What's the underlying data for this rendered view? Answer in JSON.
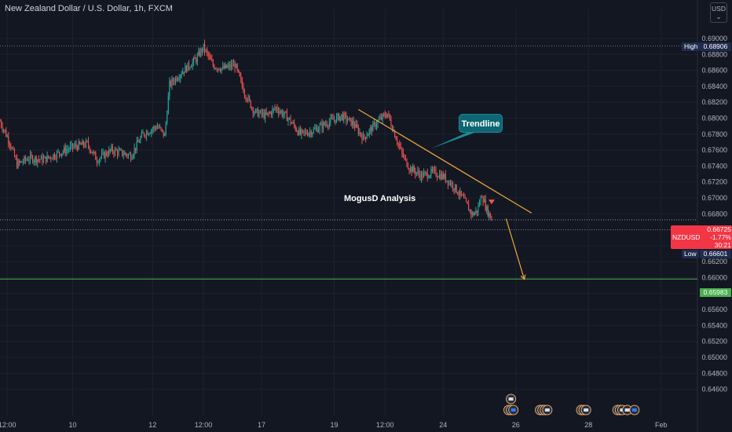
{
  "header": {
    "title": "New Zealand Dollar / U.S. Dollar, 1h, FXCM",
    "currency_label": "USD"
  },
  "annotations": {
    "callout_text": "Trendline",
    "watermark_text": "MogusD Analysis"
  },
  "markers": {
    "high_label": "High",
    "high_value": "0.68906",
    "low_label": "Low",
    "low_value": "0.66601",
    "target_value": "0.65983",
    "symbol": "NZDUSD",
    "last_price": "0.66725",
    "change_pct": "-1.77%",
    "countdown": "30:21"
  },
  "colors": {
    "background": "#131722",
    "up_candle": "#26a69a",
    "down_candle": "#ef5350",
    "trendline": "#f0a53b",
    "target_line": "#4caf50",
    "price_label": "#f23645",
    "callout": "#0e6672"
  },
  "icons": [
    "flag-icon-calendar-events",
    "currency-menu-icon"
  ],
  "chart_data": {
    "type": "candlestick",
    "symbol": "NZDUSD",
    "timeframe": "1h",
    "ylim": [
      0.646,
      0.692
    ],
    "y_ticks": [
      "0.69000",
      "0.68800",
      "0.68600",
      "0.68400",
      "0.68200",
      "0.68000",
      "0.67800",
      "0.67600",
      "0.67400",
      "0.67200",
      "0.67000",
      "0.66800",
      "0.66600",
      "0.66400",
      "0.66200",
      "0.66000",
      "0.65800",
      "0.65600",
      "0.65400",
      "0.65200",
      "0.65000",
      "0.64800",
      "0.64600"
    ],
    "x_ticks": [
      {
        "label": "12:00",
        "t": 6
      },
      {
        "label": "10",
        "t": 60
      },
      {
        "label": "12",
        "t": 126
      },
      {
        "label": "12:00",
        "t": 168
      },
      {
        "label": "17",
        "t": 216
      },
      {
        "label": "19",
        "t": 276
      },
      {
        "label": "12:00",
        "t": 318
      },
      {
        "label": "24",
        "t": 366
      },
      {
        "label": "26",
        "t": 426
      },
      {
        "label": "28",
        "t": 486
      },
      {
        "label": "Feb",
        "t": 546
      }
    ],
    "xlim": [
      0,
      576
    ],
    "waypoints": [
      [
        0,
        0.6796
      ],
      [
        8,
        0.677
      ],
      [
        14,
        0.6742
      ],
      [
        24,
        0.675
      ],
      [
        36,
        0.6748
      ],
      [
        48,
        0.6756
      ],
      [
        60,
        0.6764
      ],
      [
        72,
        0.6768
      ],
      [
        80,
        0.6748
      ],
      [
        92,
        0.676
      ],
      [
        108,
        0.6753
      ],
      [
        118,
        0.678
      ],
      [
        130,
        0.679
      ],
      [
        136,
        0.6778
      ],
      [
        140,
        0.6842
      ],
      [
        150,
        0.6858
      ],
      [
        162,
        0.6874
      ],
      [
        168,
        0.6889
      ],
      [
        176,
        0.6866
      ],
      [
        184,
        0.6862
      ],
      [
        194,
        0.6867
      ],
      [
        202,
        0.6832
      ],
      [
        210,
        0.6808
      ],
      [
        220,
        0.6803
      ],
      [
        228,
        0.6813
      ],
      [
        238,
        0.68
      ],
      [
        248,
        0.678
      ],
      [
        258,
        0.6784
      ],
      [
        270,
        0.6794
      ],
      [
        282,
        0.6803
      ],
      [
        292,
        0.6793
      ],
      [
        300,
        0.6775
      ],
      [
        312,
        0.6796
      ],
      [
        320,
        0.6806
      ],
      [
        326,
        0.678
      ],
      [
        332,
        0.6755
      ],
      [
        338,
        0.6738
      ],
      [
        348,
        0.6728
      ],
      [
        358,
        0.6732
      ],
      [
        366,
        0.6727
      ],
      [
        374,
        0.6716
      ],
      [
        382,
        0.67
      ],
      [
        390,
        0.6679
      ],
      [
        394,
        0.6684
      ],
      [
        398,
        0.6704
      ],
      [
        402,
        0.6685
      ],
      [
        406,
        0.6674
      ]
    ],
    "trendline": [
      [
        296,
        0.6811
      ],
      [
        439,
        0.6681
      ]
    ],
    "projection": [
      [
        418,
        0.6674
      ],
      [
        433,
        0.6598
      ]
    ],
    "target_level": 0.65983,
    "high_level": 0.68906,
    "low_level": 0.66601,
    "last_price_level": 0.66725,
    "event_flags_t": [
      420,
      422,
      424,
      446,
      448,
      450,
      452,
      480,
      482,
      484,
      510,
      512,
      514,
      518,
      524
    ]
  }
}
